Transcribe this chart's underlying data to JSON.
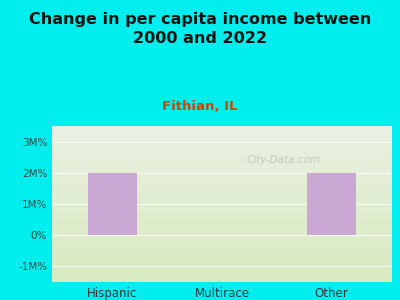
{
  "title": "Change in per capita income between\n2000 and 2022",
  "subtitle": "Fithian, IL",
  "categories": [
    "Hispanic",
    "Multirace",
    "Other"
  ],
  "values": [
    2.0,
    0.0,
    2.0
  ],
  "bar_color": "#c9a8d4",
  "background_color": "#00EEEE",
  "grad_top_color": "#eaf0e2",
  "grad_bottom_color": "#d8ebc0",
  "title_fontsize": 11.5,
  "subtitle_fontsize": 9.5,
  "subtitle_color": "#cc4400",
  "title_color": "#111111",
  "ylabel_ticks": [
    "-1M%",
    "0%",
    "1M%",
    "2M%",
    "3M%"
  ],
  "ytick_vals": [
    -1,
    0,
    1,
    2,
    3
  ],
  "ylim": [
    -1.5,
    3.5
  ],
  "watermark": "City-Data.com",
  "tick_color": "#444444",
  "xtick_color": "#333333",
  "bar_width": 0.45,
  "xlim": [
    -0.55,
    2.55
  ]
}
